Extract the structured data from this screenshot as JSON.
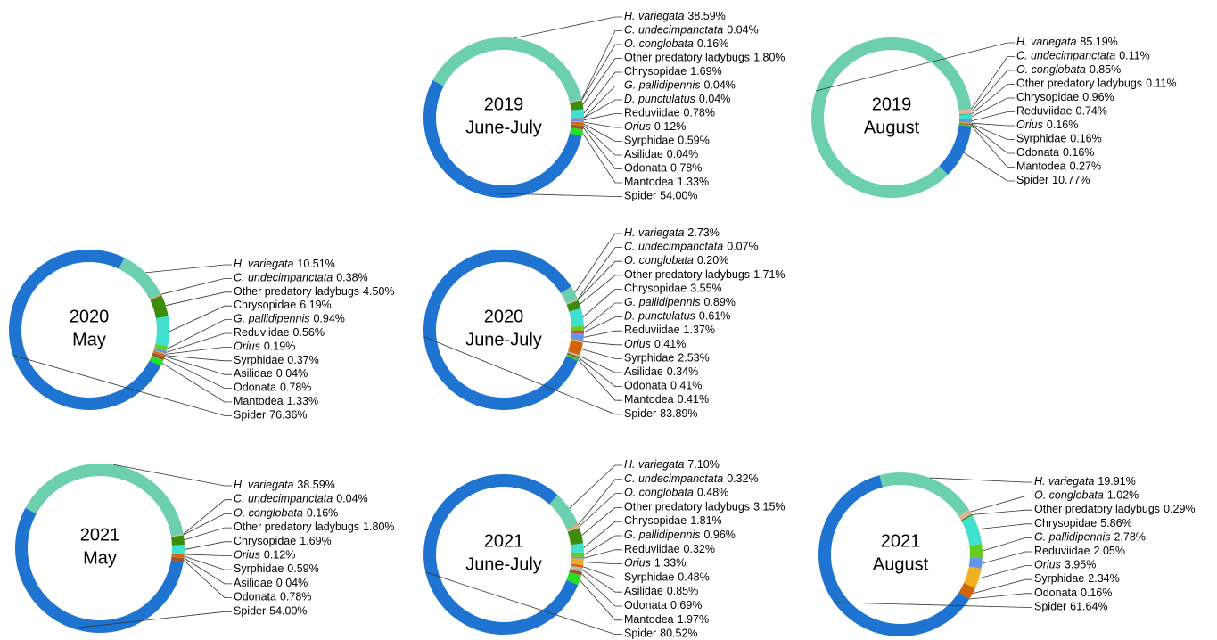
{
  "chart_data": [
    {
      "type": "donut",
      "title": "2019",
      "subtitle": "June-July",
      "categories": [
        "H. variegata",
        "C. undecimpanctata",
        "O. conglobata",
        "Other predatory ladybugs",
        "Chrysopidae",
        "G. pallidipennis",
        "D. punctulatus",
        "Reduviidae",
        "Orius",
        "Syrphidae",
        "Asilidae",
        "Odonata",
        "Mantodea",
        "Spider"
      ],
      "italic": [
        true,
        true,
        true,
        false,
        false,
        true,
        true,
        false,
        true,
        false,
        false,
        false,
        false,
        false
      ],
      "values": [
        38.59,
        0.04,
        0.16,
        1.8,
        1.69,
        0.04,
        0.04,
        0.78,
        0.12,
        0.59,
        0.04,
        0.78,
        1.33,
        54.0
      ],
      "value_labels": [
        "38.59%",
        "0.04%",
        "0.16%",
        "1.80%",
        "1.69%",
        "0.04%",
        "0.04%",
        "0.78%",
        "0.12%",
        "0.59%",
        "0.04%",
        "0.78%",
        "1.33%",
        "54.00%"
      ],
      "colors": [
        "#6ccfae",
        "#c9a57c",
        "#e3b09a",
        "#3c8c0c",
        "#40e0d0",
        "#66cc22",
        "#d2691e",
        "#6495ed",
        "#f0a830",
        "#d2650a",
        "#b8b8b8",
        "#a0522d",
        "#22e022",
        "#1e74d0"
      ]
    },
    {
      "type": "donut",
      "title": "2019",
      "subtitle": "August",
      "categories": [
        "H. variegata",
        "C. undecimpanctata",
        "O. conglobata",
        "Other predatory ladybugs",
        "Chrysopidae",
        "Reduviidae",
        "Orius",
        "Syrphidae",
        "Odonata",
        "Mantodea",
        "Spider"
      ],
      "italic": [
        true,
        true,
        true,
        false,
        false,
        false,
        true,
        false,
        false,
        false,
        false
      ],
      "values": [
        85.19,
        0.11,
        0.85,
        0.11,
        0.96,
        0.74,
        0.16,
        0.16,
        0.16,
        0.27,
        10.77
      ],
      "value_labels": [
        "85.19%",
        "0.11%",
        "0.85%",
        "0.11%",
        "0.96%",
        "0.74%",
        "0.16%",
        "0.16%",
        "0.16%",
        "0.27%",
        "10.77%"
      ],
      "colors": [
        "#6ccfae",
        "#c9a57c",
        "#e3b09a",
        "#3c8c0c",
        "#40e0d0",
        "#6495ed",
        "#f0a830",
        "#d2650a",
        "#a0522d",
        "#22e022",
        "#1e74d0"
      ]
    },
    {
      "type": "donut",
      "title": "2020",
      "subtitle": "May",
      "categories": [
        "H. variegata",
        "C. undecimpanctata",
        "Other predatory ladybugs",
        "Chrysopidae",
        "G. pallidipennis",
        "Reduviidae",
        "Orius",
        "Syrphidae",
        "Asilidae",
        "Odonata",
        "Mantodea",
        "Spider"
      ],
      "italic": [
        true,
        true,
        false,
        false,
        true,
        false,
        true,
        false,
        false,
        false,
        false,
        false
      ],
      "values": [
        10.51,
        0.38,
        4.5,
        6.19,
        0.94,
        0.56,
        0.19,
        0.37,
        0.04,
        0.78,
        1.33,
        76.36
      ],
      "value_labels": [
        "10.51%",
        "0.38%",
        "4.50%",
        "6.19%",
        "0.94%",
        "0.56%",
        "0.19%",
        "0.37%",
        "0.04%",
        "0.78%",
        "1.33%",
        "76.36%"
      ],
      "colors": [
        "#6ccfae",
        "#c9a57c",
        "#3c8c0c",
        "#40e0d0",
        "#66cc22",
        "#6495ed",
        "#f0a830",
        "#d2650a",
        "#b8b8b8",
        "#a0522d",
        "#22e022",
        "#1e74d0"
      ]
    },
    {
      "type": "donut",
      "title": "2020",
      "subtitle": "June-July",
      "categories": [
        "H. variegata",
        "C. undecimpanctata",
        "O. conglobata",
        "Other predatory ladybugs",
        "Chrysopidae",
        "G. pallidipennis",
        "D. punctulatus",
        "Reduviidae",
        "Orius",
        "Syrphidae",
        "Asilidae",
        "Odonata",
        "Mantodea",
        "Spider"
      ],
      "italic": [
        true,
        true,
        true,
        false,
        false,
        true,
        true,
        false,
        true,
        false,
        false,
        false,
        false,
        false
      ],
      "values": [
        2.73,
        0.07,
        0.2,
        1.71,
        3.55,
        0.89,
        0.61,
        1.37,
        0.41,
        2.53,
        0.34,
        0.41,
        0.41,
        83.89
      ],
      "value_labels": [
        "2.73%",
        "0.07%",
        "0.20%",
        "1.71%",
        "3.55%",
        "0.89%",
        "0.61%",
        "1.37%",
        "0.41%",
        "2.53%",
        "0.34%",
        "0.41%",
        "0.41%",
        "83.89%"
      ],
      "colors": [
        "#6ccfae",
        "#c9a57c",
        "#e3b09a",
        "#3c8c0c",
        "#40e0d0",
        "#66cc22",
        "#e04040",
        "#6495ed",
        "#f0a830",
        "#d2650a",
        "#b8b8b8",
        "#a0522d",
        "#22e022",
        "#1e74d0"
      ]
    },
    {
      "type": "donut",
      "title": "2021",
      "subtitle": "May",
      "categories": [
        "H. variegata",
        "C. undecimpanctata",
        "O. conglobata",
        "Other predatory ladybugs",
        "Chrysopidae",
        "Orius",
        "Syrphidae",
        "Asilidae",
        "Odonata",
        "Spider"
      ],
      "italic": [
        true,
        true,
        true,
        false,
        false,
        true,
        false,
        false,
        false,
        false
      ],
      "values": [
        38.59,
        0.04,
        0.16,
        1.8,
        1.69,
        0.12,
        0.59,
        0.04,
        0.78,
        54.0
      ],
      "value_labels": [
        "38.59%",
        "0.04%",
        "0.16%",
        "1.80%",
        "1.69%",
        "0.12%",
        "0.59%",
        "0.04%",
        "0.78%",
        "54.00%"
      ],
      "colors": [
        "#6ccfae",
        "#c9a57c",
        "#e3b09a",
        "#3c8c0c",
        "#40e0d0",
        "#f0a830",
        "#d2650a",
        "#b8b8b8",
        "#a0522d",
        "#1e74d0"
      ]
    },
    {
      "type": "donut",
      "title": "2021",
      "subtitle": "June-July",
      "categories": [
        "H. variegata",
        "C. undecimpanctata",
        "O. conglobata",
        "Other predatory ladybugs",
        "Chrysopidae",
        "G. pallidipennis",
        "Reduviidae",
        "Orius",
        "Syrphidae",
        "Asilidae",
        "Odonata",
        "Mantodea",
        "Spider"
      ],
      "italic": [
        true,
        true,
        true,
        false,
        false,
        true,
        false,
        true,
        false,
        false,
        false,
        false,
        false
      ],
      "values": [
        7.1,
        0.32,
        0.48,
        3.15,
        1.81,
        0.96,
        0.32,
        1.33,
        0.48,
        0.85,
        0.69,
        1.97,
        80.52
      ],
      "value_labels": [
        "7.10%",
        "0.32%",
        "0.48%",
        "3.15%",
        "1.81%",
        "0.96%",
        "0.32%",
        "1.33%",
        "0.48%",
        "0.85%",
        "0.69%",
        "1.97%",
        "80.52%"
      ],
      "colors": [
        "#6ccfae",
        "#c9a57c",
        "#e3b09a",
        "#3c8c0c",
        "#40e0d0",
        "#66cc22",
        "#6495ed",
        "#f0a830",
        "#d2650a",
        "#b8b8b8",
        "#a0522d",
        "#22e022",
        "#1e74d0"
      ]
    },
    {
      "type": "donut",
      "title": "2021",
      "subtitle": "August",
      "categories": [
        "H. variegata",
        "O. conglobata",
        "Other predatory ladybugs",
        "Chrysopidae",
        "G. pallidipennis",
        "Reduviidae",
        "Orius",
        "Syrphidae",
        "Odonata",
        "Spider"
      ],
      "italic": [
        true,
        true,
        false,
        false,
        true,
        false,
        true,
        false,
        false,
        false
      ],
      "values": [
        19.91,
        1.02,
        0.29,
        5.86,
        2.78,
        2.05,
        3.95,
        2.34,
        0.16,
        61.64
      ],
      "value_labels": [
        "19.91%",
        "1.02%",
        "0.29%",
        "5.86%",
        "2.78%",
        "2.05%",
        "3.95%",
        "2.34%",
        "0.16%",
        "61.64%"
      ],
      "colors": [
        "#6ccfae",
        "#e3b09a",
        "#3c8c0c",
        "#40e0d0",
        "#66cc22",
        "#6495ed",
        "#f0b020",
        "#d2650a",
        "#a0522d",
        "#1e74d0"
      ]
    }
  ]
}
